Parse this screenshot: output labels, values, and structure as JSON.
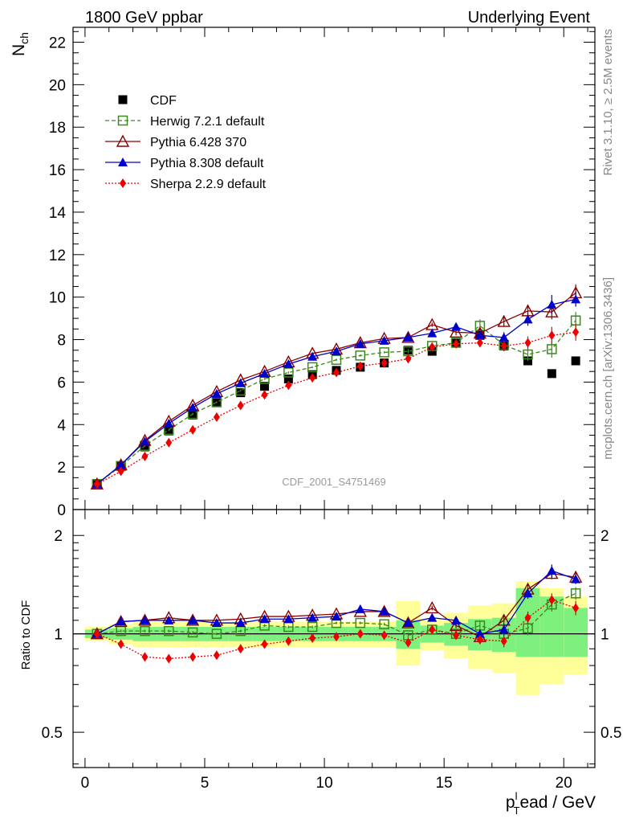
{
  "header": {
    "left": "1800 GeV ppbar",
    "right": "Underlying Event"
  },
  "side_labels": {
    "top": "Rivet 3.1.10, ≥ 2.5M events",
    "bottom": "mcplots.cern.ch [arXiv:1306.3436]"
  },
  "watermark": "CDF_2001_S4751469",
  "axes": {
    "ylabel_main": "N",
    "ylabel_main_sub": "ch",
    "ylabel_ratio": "Ratio to CDF",
    "xlabel_p": "p",
    "xlabel_sub": "T",
    "xlabel_sup": "l",
    "xlabel_rest": "ead / GeV"
  },
  "colors": {
    "cdf": "#000000",
    "herwig": "#3a8a1a",
    "pythia6": "#8b0000",
    "pythia8": "#0000cc",
    "sherpa": "#ee0000",
    "band_inner": "#7ef07e",
    "band_outer": "#ffff99"
  },
  "chart_data": {
    "type": "scatter",
    "x": [
      0.5,
      1.5,
      2.5,
      3.5,
      4.5,
      5.5,
      6.5,
      7.5,
      8.5,
      9.5,
      10.5,
      11.5,
      12.5,
      13.5,
      14.5,
      15.5,
      16.5,
      17.5,
      18.5,
      19.5,
      20.5
    ],
    "xlim": [
      -0.5,
      21.3
    ],
    "ylim_main": [
      0,
      22.7
    ],
    "ylim_ratio": [
      0.39,
      2.4
    ],
    "xticks": [
      0,
      5,
      10,
      15,
      20
    ],
    "yticks_main": [
      0,
      2,
      4,
      6,
      8,
      10,
      12,
      14,
      16,
      18,
      20,
      22
    ],
    "yticks_ratio": [
      0.5,
      1,
      2
    ],
    "yticks_ratio_right": [
      0.5,
      1,
      2
    ],
    "legend": [
      {
        "name": "CDF",
        "key": "cdf"
      },
      {
        "name": "Herwig 7.2.1 default",
        "key": "herwig"
      },
      {
        "name": "Pythia 6.428 370",
        "key": "pythia6"
      },
      {
        "name": "Pythia 8.308 default",
        "key": "pythia8"
      },
      {
        "name": "Sherpa 2.2.9 default",
        "key": "sherpa"
      }
    ],
    "series": {
      "cdf": [
        1.2,
        2.05,
        2.95,
        3.7,
        4.45,
        5.05,
        5.5,
        5.8,
        6.15,
        6.35,
        6.55,
        6.7,
        6.9,
        7.5,
        7.45,
        7.85,
        8.2,
        7.7,
        7.0,
        6.4,
        7.0
      ],
      "herwig": [
        1.2,
        2.05,
        3.0,
        3.75,
        4.5,
        5.05,
        5.6,
        6.15,
        6.45,
        6.7,
        7.05,
        7.25,
        7.4,
        7.45,
        7.7,
        7.85,
        8.65,
        7.75,
        7.3,
        7.55,
        8.9
      ],
      "pythia6": [
        1.2,
        2.1,
        3.25,
        4.15,
        4.9,
        5.55,
        6.1,
        6.5,
        6.95,
        7.35,
        7.55,
        7.85,
        8.05,
        8.1,
        8.7,
        8.35,
        8.3,
        8.85,
        9.35,
        9.3,
        10.2
      ],
      "pythia8": [
        1.2,
        2.1,
        3.2,
        4.05,
        4.8,
        5.45,
        5.95,
        6.4,
        6.85,
        7.2,
        7.45,
        7.8,
        7.95,
        8.1,
        8.3,
        8.6,
        8.2,
        8.1,
        8.95,
        9.65,
        9.9
      ],
      "sherpa": [
        1.2,
        1.8,
        2.5,
        3.15,
        3.75,
        4.35,
        4.9,
        5.4,
        5.85,
        6.2,
        6.45,
        6.75,
        6.9,
        7.1,
        7.65,
        7.8,
        7.85,
        7.7,
        7.85,
        8.2,
        8.35
      ]
    },
    "errors_main": {
      "cdf": [
        0.05,
        0.05,
        0.05,
        0.05,
        0.05,
        0.05,
        0.05,
        0.05,
        0.05,
        0.05,
        0.05,
        0.05,
        0.05,
        0.1,
        0.1,
        0.1,
        0.15,
        0.2,
        0.2,
        0.2,
        0.2
      ],
      "herwig": [
        0.05,
        0.05,
        0.05,
        0.05,
        0.05,
        0.05,
        0.05,
        0.05,
        0.05,
        0.05,
        0.05,
        0.05,
        0.05,
        0.1,
        0.1,
        0.15,
        0.3,
        0.3,
        0.3,
        0.4,
        0.4
      ],
      "pythia6": [
        0.05,
        0.05,
        0.05,
        0.05,
        0.05,
        0.05,
        0.05,
        0.05,
        0.05,
        0.05,
        0.05,
        0.05,
        0.05,
        0.1,
        0.1,
        0.15,
        0.2,
        0.25,
        0.3,
        0.35,
        0.4
      ],
      "pythia8": [
        0.05,
        0.05,
        0.05,
        0.05,
        0.05,
        0.05,
        0.05,
        0.05,
        0.05,
        0.05,
        0.05,
        0.05,
        0.05,
        0.1,
        0.1,
        0.15,
        0.2,
        0.25,
        0.3,
        0.45,
        0.35
      ],
      "sherpa": [
        0.05,
        0.05,
        0.05,
        0.05,
        0.05,
        0.05,
        0.05,
        0.05,
        0.05,
        0.05,
        0.05,
        0.05,
        0.05,
        0.1,
        0.1,
        0.15,
        0.2,
        0.25,
        0.3,
        0.4,
        0.4
      ]
    },
    "ratio": {
      "herwig": [
        1.0,
        1.02,
        1.02,
        1.02,
        1.01,
        1.0,
        1.02,
        1.06,
        1.05,
        1.05,
        1.08,
        1.08,
        1.07,
        0.99,
        1.03,
        1.0,
        1.06,
        1.0,
        1.04,
        1.23,
        1.33
      ],
      "pythia6": [
        1.0,
        1.09,
        1.1,
        1.12,
        1.1,
        1.1,
        1.11,
        1.13,
        1.13,
        1.14,
        1.15,
        1.17,
        1.17,
        1.08,
        1.2,
        1.06,
        0.98,
        1.1,
        1.37,
        1.53,
        1.49
      ],
      "pythia8": [
        1.0,
        1.09,
        1.1,
        1.1,
        1.1,
        1.08,
        1.08,
        1.11,
        1.11,
        1.12,
        1.13,
        1.19,
        1.17,
        1.08,
        1.12,
        1.1,
        1.0,
        1.03,
        1.33,
        1.56,
        1.47
      ],
      "sherpa": [
        1.0,
        0.93,
        0.85,
        0.84,
        0.85,
        0.86,
        0.9,
        0.93,
        0.95,
        0.97,
        0.98,
        1.0,
        0.99,
        0.94,
        1.03,
        0.99,
        0.96,
        0.95,
        1.12,
        1.27,
        1.2
      ]
    },
    "ratio_errors": {
      "herwig": [
        0.01,
        0.01,
        0.01,
        0.01,
        0.01,
        0.01,
        0.01,
        0.01,
        0.01,
        0.01,
        0.01,
        0.01,
        0.01,
        0.02,
        0.02,
        0.02,
        0.04,
        0.04,
        0.05,
        0.06,
        0.06
      ],
      "pythia6": [
        0.01,
        0.01,
        0.01,
        0.01,
        0.01,
        0.01,
        0.01,
        0.01,
        0.01,
        0.01,
        0.01,
        0.01,
        0.01,
        0.02,
        0.02,
        0.02,
        0.03,
        0.04,
        0.05,
        0.06,
        0.06
      ],
      "pythia8": [
        0.01,
        0.01,
        0.01,
        0.01,
        0.01,
        0.01,
        0.01,
        0.01,
        0.01,
        0.01,
        0.01,
        0.01,
        0.01,
        0.02,
        0.02,
        0.02,
        0.03,
        0.04,
        0.05,
        0.07,
        0.05
      ],
      "sherpa": [
        0.01,
        0.01,
        0.01,
        0.01,
        0.01,
        0.01,
        0.01,
        0.01,
        0.01,
        0.01,
        0.01,
        0.01,
        0.01,
        0.02,
        0.02,
        0.02,
        0.03,
        0.04,
        0.05,
        0.06,
        0.06
      ]
    },
    "band_inner": {
      "lo": [
        0.97,
        0.96,
        0.95,
        0.95,
        0.95,
        0.95,
        0.95,
        0.95,
        0.95,
        0.95,
        0.95,
        0.95,
        0.95,
        0.9,
        0.94,
        0.92,
        0.89,
        0.88,
        0.85,
        0.85,
        0.85
      ],
      "hi": [
        1.03,
        1.04,
        1.05,
        1.05,
        1.05,
        1.05,
        1.05,
        1.05,
        1.05,
        1.05,
        1.05,
        1.05,
        1.05,
        1.1,
        1.06,
        1.08,
        1.11,
        1.12,
        1.38,
        1.3,
        1.2
      ]
    },
    "band_outer": {
      "lo": [
        0.95,
        0.93,
        0.91,
        0.91,
        0.91,
        0.91,
        0.91,
        0.91,
        0.91,
        0.91,
        0.91,
        0.91,
        0.91,
        0.8,
        0.89,
        0.84,
        0.78,
        0.76,
        0.65,
        0.7,
        0.75
      ],
      "hi": [
        1.05,
        1.07,
        1.09,
        1.09,
        1.09,
        1.09,
        1.09,
        1.09,
        1.09,
        1.09,
        1.09,
        1.09,
        1.09,
        1.26,
        1.11,
        1.16,
        1.22,
        1.24,
        1.45,
        1.38,
        1.3
      ]
    }
  }
}
